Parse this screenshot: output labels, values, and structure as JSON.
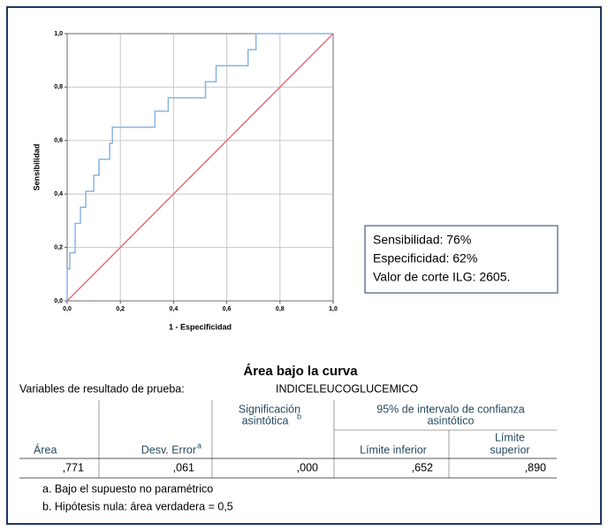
{
  "chart_data": {
    "type": "line",
    "xlabel": "1 - Especificidad",
    "ylabel": "Sensibilidad",
    "xlim": [
      0,
      1
    ],
    "ylim": [
      0,
      1
    ],
    "xticks": [
      {
        "value": 0,
        "label": "0,0"
      },
      {
        "value": 0.2,
        "label": "0,2"
      },
      {
        "value": 0.4,
        "label": "0,4"
      },
      {
        "value": 0.6,
        "label": "0,6"
      },
      {
        "value": 0.8,
        "label": "0,8"
      },
      {
        "value": 1,
        "label": "1,0"
      }
    ],
    "yticks": [
      {
        "value": 0,
        "label": "0,0"
      },
      {
        "value": 0.2,
        "label": "0,2"
      },
      {
        "value": 0.4,
        "label": "0,4"
      },
      {
        "value": 0.6,
        "label": "0,6"
      },
      {
        "value": 0.8,
        "label": "0,8"
      },
      {
        "value": 1,
        "label": "1,0"
      }
    ],
    "grid": true,
    "series": [
      {
        "color": "#8ab4e6",
        "x": [
          0,
          0,
          0.01,
          0.01,
          0.03,
          0.03,
          0.05,
          0.05,
          0.07,
          0.07,
          0.1,
          0.1,
          0.12,
          0.12,
          0.16,
          0.16,
          0.17,
          0.17,
          0.33,
          0.33,
          0.38,
          0.38,
          0.52,
          0.52,
          0.56,
          0.56,
          0.68,
          0.68,
          0.71,
          0.71,
          1
        ],
        "values": [
          0,
          0.12,
          0.12,
          0.18,
          0.18,
          0.29,
          0.29,
          0.35,
          0.35,
          0.41,
          0.41,
          0.47,
          0.47,
          0.53,
          0.53,
          0.59,
          0.59,
          0.65,
          0.65,
          0.71,
          0.71,
          0.76,
          0.76,
          0.82,
          0.82,
          0.88,
          0.88,
          0.94,
          0.94,
          1,
          1
        ]
      },
      {
        "color": "#e0707f",
        "x": [
          0,
          1
        ],
        "values": [
          0,
          1
        ]
      }
    ],
    "annotation": [
      "Sensibilidad: 76%",
      "Especificidad: 62%",
      "Valor de corte ILG: 2605."
    ]
  },
  "table": {
    "title": "Área bajo la curva",
    "variable_label": "Variables de resultado de prueba:",
    "variable": "INDICELEUCOGLUCEMICO",
    "headers": {
      "area": "Área",
      "std_error": "Desv. Error",
      "std_error_note": "a",
      "significance": [
        "Significación",
        "asintótica"
      ],
      "significance_note": "b",
      "interval": [
        "95% de intervalo de confianza",
        "asintótico"
      ],
      "lower": "Límite inferior",
      "upper": [
        "Límite",
        "superior"
      ]
    },
    "rows": [
      [
        ",771",
        ",061",
        ",000",
        ",652",
        ",890"
      ]
    ],
    "footnotes": [
      "a. Bajo el supuesto no paramétrico",
      "b. Hipótesis nula: área verdadera = 0,5"
    ]
  }
}
